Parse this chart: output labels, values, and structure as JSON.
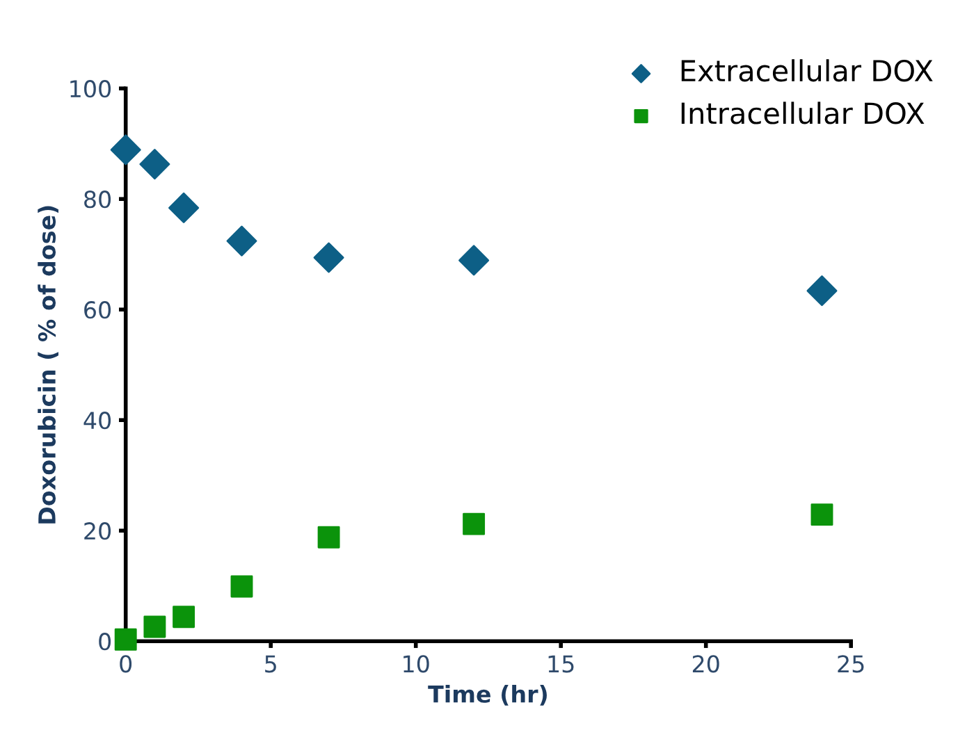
{
  "chart_data": {
    "type": "scatter",
    "xlabel": "Time (hr)",
    "ylabel": "Doxorubicin ( % of dose)",
    "x": [
      0,
      1,
      2,
      4,
      7,
      12,
      24
    ],
    "series": [
      {
        "name": "Extracellular DOX",
        "color": "#0d5f86",
        "marker": "diamond",
        "values": [
          88.9,
          86.3,
          78.4,
          72.4,
          69.4,
          68.9,
          63.4
        ]
      },
      {
        "name": "Intracellular DOX",
        "color": "#0b930b",
        "marker": "square",
        "values": [
          0.3,
          2.6,
          4.4,
          9.9,
          18.8,
          21.2,
          22.9
        ]
      }
    ],
    "xlim": [
      0,
      25
    ],
    "xticks": [
      0,
      5,
      10,
      15,
      20,
      25
    ],
    "ylim": [
      0,
      100
    ],
    "yticks": [
      0,
      20,
      40,
      60,
      80,
      100
    ],
    "grid": false,
    "legend": "top right"
  }
}
